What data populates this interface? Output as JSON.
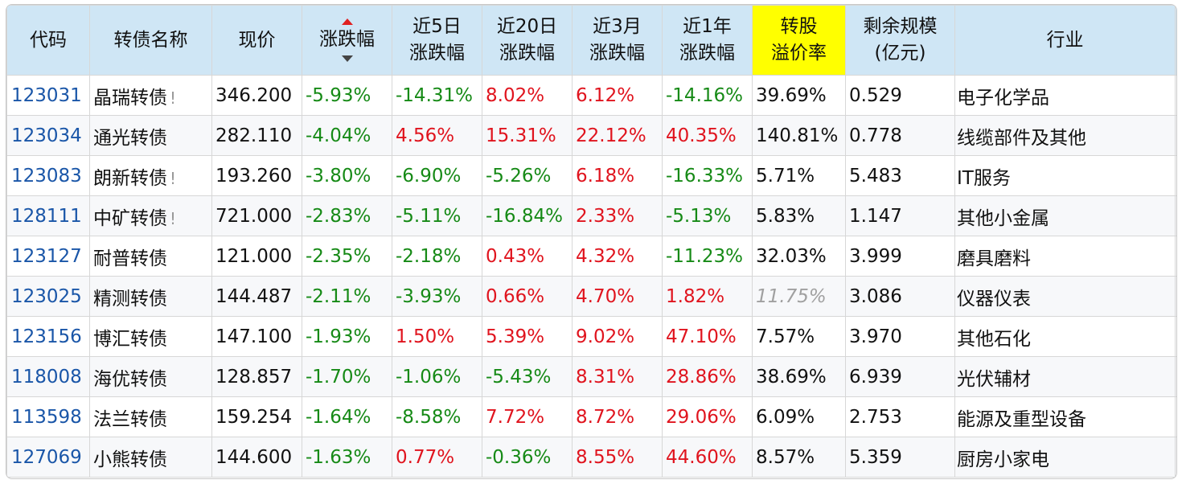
{
  "headers": {
    "code": "代码",
    "name": "转债名称",
    "price": "现价",
    "change": "涨跌幅",
    "d5_l1": "近5日",
    "d5_l2": "涨跌幅",
    "d20_l1": "近20日",
    "d20_l2": "涨跌幅",
    "m3_l1": "近3月",
    "m3_l2": "涨跌幅",
    "y1_l1": "近1年",
    "y1_l2": "涨跌幅",
    "prem_l1": "转股",
    "prem_l2": "溢价率",
    "size_l1": "剩余规模",
    "size_l2": "(亿元)",
    "industry": "行业"
  },
  "colors": {
    "header_bg": "#cfe6f5",
    "highlight_header_bg": "#ffff00",
    "up": "#e0141e",
    "down": "#168a16",
    "code_link": "#1a56a8"
  },
  "rows": [
    {
      "code": "123031",
      "name": "晶瑞转债",
      "warn": "!",
      "price": "346.200",
      "change": "-5.93%",
      "d5": "-14.31%",
      "d20": "8.02%",
      "m3": "6.12%",
      "y1": "-14.16%",
      "prem": "39.69%",
      "size": "0.529",
      "industry": "电子化学品"
    },
    {
      "code": "123034",
      "name": "通光转债",
      "warn": "",
      "price": "282.110",
      "change": "-4.04%",
      "d5": "4.56%",
      "d20": "15.31%",
      "m3": "22.12%",
      "y1": "40.35%",
      "prem": "140.81%",
      "size": "0.778",
      "industry": "线缆部件及其他"
    },
    {
      "code": "123083",
      "name": "朗新转债",
      "warn": "!",
      "price": "193.260",
      "change": "-3.80%",
      "d5": "-6.90%",
      "d20": "-5.26%",
      "m3": "6.18%",
      "y1": "-16.33%",
      "prem": "5.71%",
      "size": "5.483",
      "industry": "IT服务"
    },
    {
      "code": "128111",
      "name": "中矿转债",
      "warn": "!",
      "price": "721.000",
      "change": "-2.83%",
      "d5": "-5.11%",
      "d20": "-16.84%",
      "m3": "2.33%",
      "y1": "-5.13%",
      "prem": "5.83%",
      "size": "1.147",
      "industry": "其他小金属"
    },
    {
      "code": "123127",
      "name": "耐普转债",
      "warn": "",
      "price": "121.000",
      "change": "-2.35%",
      "d5": "-2.18%",
      "d20": "0.43%",
      "m3": "4.32%",
      "y1": "-11.23%",
      "prem": "32.03%",
      "size": "3.999",
      "industry": "磨具磨料"
    },
    {
      "code": "123025",
      "name": "精测转债",
      "warn": "",
      "price": "144.487",
      "change": "-2.11%",
      "d5": "-3.93%",
      "d20": "0.66%",
      "m3": "4.70%",
      "y1": "1.82%",
      "prem": "11.75%",
      "size": "3.086",
      "industry": "仪器仪表"
    },
    {
      "code": "123156",
      "name": "博汇转债",
      "warn": "",
      "price": "147.100",
      "change": "-1.93%",
      "d5": "1.50%",
      "d20": "5.39%",
      "m3": "9.02%",
      "y1": "47.10%",
      "prem": "7.57%",
      "size": "3.970",
      "industry": "其他石化"
    },
    {
      "code": "118008",
      "name": "海优转债",
      "warn": "",
      "price": "128.857",
      "change": "-1.70%",
      "d5": "-1.06%",
      "d20": "-5.43%",
      "m3": "8.31%",
      "y1": "28.86%",
      "prem": "38.69%",
      "size": "6.939",
      "industry": "光伏辅材"
    },
    {
      "code": "113598",
      "name": "法兰转债",
      "warn": "",
      "price": "159.254",
      "change": "-1.64%",
      "d5": "-8.58%",
      "d20": "7.72%",
      "m3": "8.72%",
      "y1": "29.06%",
      "prem": "6.09%",
      "size": "2.753",
      "industry": "能源及重型设备"
    },
    {
      "code": "127069",
      "name": "小熊转债",
      "warn": "",
      "price": "144.600",
      "change": "-1.63%",
      "d5": "0.77%",
      "d20": "-0.36%",
      "m3": "8.55%",
      "y1": "44.60%",
      "prem": "8.57%",
      "size": "5.359",
      "industry": "厨房小家电"
    }
  ]
}
